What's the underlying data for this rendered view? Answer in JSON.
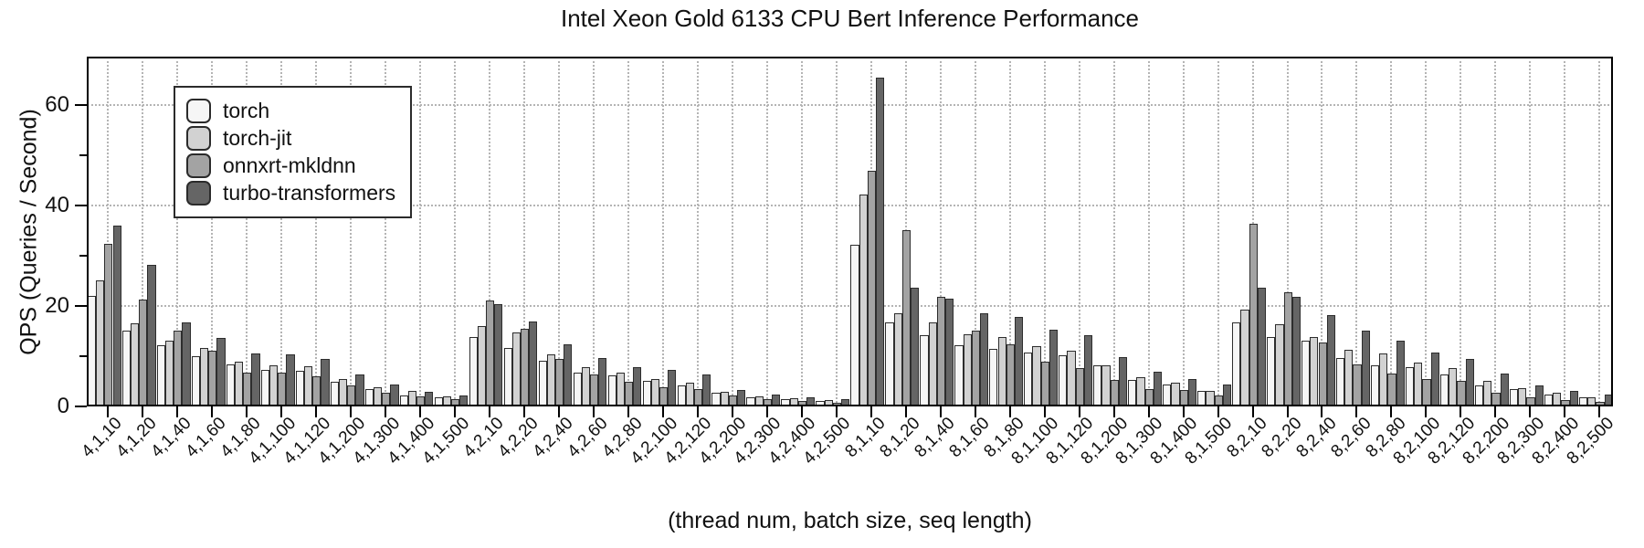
{
  "chart_data": {
    "type": "bar",
    "title": "Intel Xeon Gold 6133 CPU Bert Inference Performance",
    "xlabel": "(thread num, batch size, seq length)",
    "ylabel": "QPS (Queries / Second)",
    "ylim": [
      0,
      69.6
    ],
    "yticks": [
      0,
      20,
      40,
      60
    ],
    "yticks_minor": [
      10,
      30,
      50
    ],
    "grid": true,
    "legend_position": "upper-left",
    "colors": {
      "bar_edge": "#2d2d2d",
      "grid": "#b4b4b4",
      "axis": "#000000"
    },
    "categories": [
      "4,1,10",
      "4,1,20",
      "4,1,40",
      "4,1,60",
      "4,1,80",
      "4,1,100",
      "4,1,120",
      "4,1,200",
      "4,1,300",
      "4,1,400",
      "4,1,500",
      "4,2,10",
      "4,2,20",
      "4,2,40",
      "4,2,60",
      "4,2,80",
      "4,2,100",
      "4,2,120",
      "4,2,200",
      "4,2,300",
      "4,2,400",
      "4,2,500",
      "8,1,10",
      "8,1,20",
      "8,1,40",
      "8,1,60",
      "8,1,80",
      "8,1,100",
      "8,1,120",
      "8,1,200",
      "8,1,300",
      "8,1,400",
      "8,1,500",
      "8,2,10",
      "8,2,20",
      "8,2,40",
      "8,2,60",
      "8,2,80",
      "8,2,100",
      "8,2,120",
      "8,2,200",
      "8,2,300",
      "8,2,400",
      "8,2,500"
    ],
    "series": [
      {
        "name": "torch",
        "color": "#f6f6f6",
        "values": [
          22.0,
          15.0,
          12.1,
          10.0,
          8.3,
          7.3,
          7.1,
          4.9,
          3.5,
          2.2,
          1.9,
          13.8,
          11.6,
          9.0,
          6.7,
          6.1,
          5.0,
          4.2,
          2.7,
          1.9,
          1.4,
          1.0,
          32.1,
          16.8,
          14.1,
          12.1,
          11.4,
          10.7,
          10.1,
          8.1,
          5.3,
          4.4,
          3.1,
          16.8,
          13.9,
          13.1,
          9.7,
          8.2,
          7.9,
          6.4,
          4.2,
          3.5,
          2.4,
          1.8
        ]
      },
      {
        "name": "torch-jit",
        "color": "#d2d2d2",
        "values": [
          25.1,
          16.5,
          13.1,
          11.6,
          8.9,
          8.2,
          8.0,
          5.5,
          3.8,
          3.0,
          2.0,
          16.0,
          14.7,
          10.4,
          7.9,
          6.7,
          5.5,
          4.8,
          2.9,
          2.0,
          1.6,
          1.2,
          42.1,
          18.5,
          16.7,
          14.4,
          13.9,
          12.0,
          11.1,
          8.1,
          5.8,
          4.7,
          3.1,
          19.3,
          16.4,
          13.9,
          11.3,
          10.5,
          8.8,
          7.7,
          5.1,
          3.6,
          2.7,
          1.9
        ]
      },
      {
        "name": "onnxrt-mkldnn",
        "color": "#a3a3a3",
        "values": [
          32.3,
          21.3,
          15.1,
          11.1,
          6.8,
          6.7,
          6.0,
          4.1,
          2.7,
          2.0,
          1.5,
          21.1,
          15.4,
          9.4,
          6.3,
          4.9,
          3.9,
          3.5,
          2.1,
          1.4,
          1.0,
          0.8,
          46.8,
          35.1,
          21.8,
          15.0,
          12.3,
          8.9,
          7.7,
          5.3,
          3.5,
          3.3,
          2.1,
          36.3,
          22.7,
          12.8,
          8.3,
          6.5,
          5.5,
          5.0,
          2.7,
          1.8,
          1.2,
          0.9
        ]
      },
      {
        "name": "turbo-transformers",
        "color": "#656565",
        "values": [
          36.0,
          28.2,
          16.8,
          13.6,
          10.5,
          10.4,
          9.4,
          6.3,
          4.4,
          2.9,
          2.2,
          20.4,
          16.9,
          12.3,
          9.6,
          7.8,
          7.2,
          6.3,
          3.3,
          2.3,
          1.8,
          1.5,
          65.5,
          23.6,
          21.5,
          18.6,
          17.8,
          15.3,
          14.2,
          9.9,
          6.9,
          5.5,
          4.3,
          23.7,
          21.8,
          18.2,
          15.1,
          13.0,
          10.7,
          9.5,
          6.5,
          4.2,
          3.1,
          2.4
        ]
      }
    ]
  }
}
